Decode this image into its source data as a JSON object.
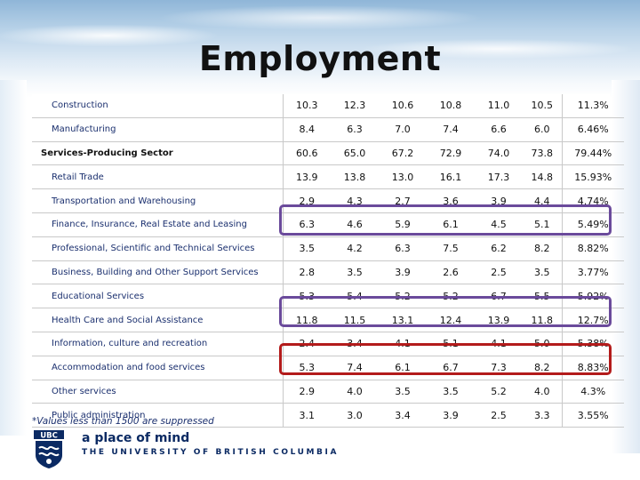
{
  "slide": {
    "title": "Employment",
    "footnote": "*Values less than 1500 are suppressed",
    "branding": {
      "logo_text": "UBC",
      "tagline": "a place of mind",
      "university": "THE UNIVERSITY OF BRITISH COLUMBIA"
    }
  },
  "table": {
    "rows": [
      {
        "label": "Construction",
        "bold": false,
        "values": [
          "10.3",
          "12.3",
          "10.6",
          "10.8",
          "11.0",
          "10.5"
        ],
        "pct": "11.3%"
      },
      {
        "label": "Manufacturing",
        "bold": false,
        "values": [
          "8.4",
          "6.3",
          "7.0",
          "7.4",
          "6.6",
          "6.0"
        ],
        "pct": "6.46%"
      },
      {
        "label": "Services-Producing Sector",
        "bold": true,
        "values": [
          "60.6",
          "65.0",
          "67.2",
          "72.9",
          "74.0",
          "73.8"
        ],
        "pct": "79.44%"
      },
      {
        "label": "Retail Trade",
        "bold": false,
        "values": [
          "13.9",
          "13.8",
          "13.0",
          "16.1",
          "17.3",
          "14.8"
        ],
        "pct": "15.93%"
      },
      {
        "label": "Transportation and Warehousing",
        "bold": false,
        "values": [
          "2.9",
          "4.3",
          "2.7",
          "3.6",
          "3.9",
          "4.4"
        ],
        "pct": "4.74%"
      },
      {
        "label": "Finance, Insurance, Real Estate and Leasing",
        "bold": false,
        "values": [
          "6.3",
          "4.6",
          "5.9",
          "6.1",
          "4.5",
          "5.1"
        ],
        "pct": "5.49%"
      },
      {
        "label": "Professional, Scientific and Technical Services",
        "bold": false,
        "values": [
          "3.5",
          "4.2",
          "6.3",
          "7.5",
          "6.2",
          "8.2"
        ],
        "pct": "8.82%"
      },
      {
        "label": "Business, Building and Other Support Services",
        "bold": false,
        "values": [
          "2.8",
          "3.5",
          "3.9",
          "2.6",
          "2.5",
          "3.5"
        ],
        "pct": "3.77%"
      },
      {
        "label": "Educational Services",
        "bold": false,
        "values": [
          "5.3",
          "5.4",
          "5.2",
          "5.2",
          "6.7",
          "5.5"
        ],
        "pct": "5.92%"
      },
      {
        "label": "Health Care and Social Assistance",
        "bold": false,
        "values": [
          "11.8",
          "11.5",
          "13.1",
          "12.4",
          "13.9",
          "11.8"
        ],
        "pct": "12.7%"
      },
      {
        "label": "Information, culture and recreation",
        "bold": false,
        "values": [
          "2.4",
          "3.4",
          "4.1",
          "5.1",
          "4.1",
          "5.0"
        ],
        "pct": "5.38%"
      },
      {
        "label": "Accommodation and food services",
        "bold": false,
        "values": [
          "5.3",
          "7.4",
          "6.1",
          "6.7",
          "7.3",
          "8.2"
        ],
        "pct": "8.83%"
      },
      {
        "label": "Other services",
        "bold": false,
        "values": [
          "2.9",
          "4.0",
          "3.5",
          "3.5",
          "5.2",
          "4.0"
        ],
        "pct": "4.3%"
      },
      {
        "label": "Public administration",
        "bold": false,
        "values": [
          "3.1",
          "3.0",
          "3.4",
          "3.9",
          "2.5",
          "3.3"
        ],
        "pct": "3.55%"
      }
    ]
  },
  "highlights": {
    "purple": "#6a4a9b",
    "red": "#b31b1b"
  },
  "colors": {
    "label_text": "#1a2f6e",
    "ubc_blue": "#0b2a63"
  }
}
